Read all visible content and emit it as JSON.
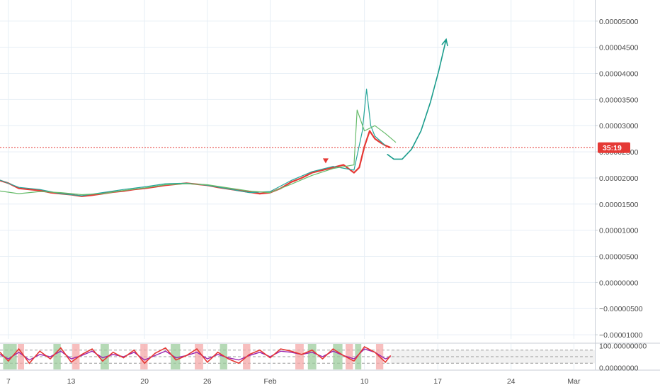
{
  "chart_data": {
    "type": "line",
    "title": "",
    "xlabel": "",
    "ylabel": "",
    "x_tick_labels": [
      "7",
      "13",
      "20",
      "26",
      "Feb",
      "10",
      "17",
      "24",
      "Mar"
    ],
    "x_tick_days": [
      7,
      13,
      20,
      26,
      32,
      41,
      48,
      55,
      61
    ],
    "x_range_days": [
      6.2,
      63.0
    ],
    "price_axis": {
      "tick_labels": [
        "0.00005000",
        "0.00004500",
        "0.00004000",
        "0.00003500",
        "0.00003000",
        "0.00002500",
        "0.00002000",
        "0.00001500",
        "0.00001000",
        "0.00000500",
        "0.00000000",
        "−0.00000500",
        "−0.00001000"
      ],
      "tick_values": [
        5e-05,
        4.5e-05,
        4e-05,
        3.5e-05,
        3e-05,
        2.5e-05,
        2e-05,
        1.5e-05,
        1e-05,
        5e-06,
        0.0,
        -5e-06,
        -1e-05
      ],
      "ylim": [
        -1.08e-05,
        5.35e-05
      ]
    },
    "current_price": 2.58e-05,
    "countdown_label": "35:19",
    "grid": true,
    "series": [
      {
        "color": "#e53935",
        "x": [
          6.2,
          7,
          8,
          9,
          10,
          11,
          12,
          13,
          14,
          15,
          16,
          17,
          18,
          19,
          20,
          21,
          22,
          23,
          24,
          25,
          26,
          27,
          28,
          29,
          30,
          31,
          32,
          33,
          34,
          35,
          36,
          37,
          38,
          39,
          40,
          40.5,
          41,
          41.5,
          42,
          42.5,
          43,
          43.5
        ],
        "y": [
          1.95e-05,
          1.9e-05,
          1.8e-05,
          1.78e-05,
          1.76e-05,
          1.72e-05,
          1.7e-05,
          1.68e-05,
          1.65e-05,
          1.67e-05,
          1.7e-05,
          1.73e-05,
          1.75e-05,
          1.78e-05,
          1.8e-05,
          1.83e-05,
          1.86e-05,
          1.88e-05,
          1.9e-05,
          1.88e-05,
          1.86e-05,
          1.82e-05,
          1.79e-05,
          1.76e-05,
          1.73e-05,
          1.7e-05,
          1.72e-05,
          1.8e-05,
          1.92e-05,
          2e-05,
          2.1e-05,
          2.15e-05,
          2.2e-05,
          2.25e-05,
          2.1e-05,
          2.2e-05,
          2.6e-05,
          2.9e-05,
          2.75e-05,
          2.68e-05,
          2.62e-05,
          2.58e-05
        ]
      },
      {
        "color": "#26a69a",
        "x": [
          6.2,
          8,
          10,
          12,
          14,
          16,
          18,
          20,
          22,
          24,
          26,
          28,
          30,
          32,
          34,
          36,
          38,
          40,
          40.8,
          41.2,
          41.6,
          42,
          43
        ],
        "y": [
          1.96e-05,
          1.82e-05,
          1.78e-05,
          1.7e-05,
          1.66e-05,
          1.72e-05,
          1.78e-05,
          1.83e-05,
          1.89e-05,
          1.9e-05,
          1.86e-05,
          1.79e-05,
          1.72e-05,
          1.74e-05,
          1.95e-05,
          2.12e-05,
          2.22e-05,
          2.15e-05,
          2.9e-05,
          3.7e-05,
          3e-05,
          2.8e-05,
          2.62e-05
        ]
      },
      {
        "color": "#66bb6a",
        "x": [
          6.2,
          8,
          10,
          12,
          14,
          16,
          18,
          20,
          22,
          24,
          26,
          28,
          30,
          32,
          34,
          36,
          38,
          40,
          40.3,
          41,
          42,
          43,
          44
        ],
        "y": [
          1.75e-05,
          1.7e-05,
          1.74e-05,
          1.72e-05,
          1.68e-05,
          1.7e-05,
          1.76e-05,
          1.81e-05,
          1.87e-05,
          1.89e-05,
          1.87e-05,
          1.81e-05,
          1.75e-05,
          1.72e-05,
          1.88e-05,
          2.05e-05,
          2.18e-05,
          2.25e-05,
          3.3e-05,
          2.9e-05,
          3e-05,
          2.85e-05,
          2.68e-05
        ]
      }
    ],
    "annotations": [
      {
        "type": "arrow",
        "color": "#1a9c8c",
        "x": [
          43.2,
          43.8,
          44.6,
          45.5,
          46.4,
          47.3,
          48.1,
          48.8
        ],
        "y": [
          2.45e-05,
          2.36e-05,
          2.36e-05,
          2.55e-05,
          2.9e-05,
          3.45e-05,
          4.05e-05,
          4.65e-05
        ]
      },
      {
        "type": "marker",
        "shape": "triangle-down",
        "color": "#e53935",
        "x": 37.3,
        "y": 2.32e-05
      }
    ],
    "oscillator": {
      "tick_labels": [
        "100.00000000",
        "0.00000000"
      ],
      "tick_values": [
        100,
        0
      ],
      "ylim": [
        -8,
        108
      ],
      "band_upper": 80,
      "band_lower": 20,
      "series_colors": [
        "#e53935",
        "#9c27b0"
      ],
      "x": [
        6.2,
        7,
        8,
        9,
        10,
        11,
        12,
        13,
        14,
        15,
        16,
        17,
        18,
        19,
        20,
        21,
        22,
        23,
        24,
        25,
        26,
        27,
        28,
        29,
        30,
        31,
        32,
        33,
        34,
        35,
        36,
        37,
        38,
        39,
        40,
        41,
        42,
        43,
        43.5
      ],
      "k": [
        70,
        30,
        85,
        20,
        75,
        40,
        90,
        25,
        60,
        85,
        30,
        70,
        45,
        80,
        20,
        65,
        90,
        35,
        55,
        85,
        25,
        70,
        40,
        20,
        60,
        80,
        45,
        85,
        75,
        60,
        80,
        40,
        85,
        55,
        30,
        95,
        70,
        25,
        55
      ],
      "d": [
        60,
        40,
        70,
        35,
        60,
        50,
        75,
        40,
        55,
        75,
        45,
        60,
        50,
        70,
        35,
        55,
        75,
        45,
        55,
        70,
        40,
        60,
        45,
        35,
        55,
        70,
        50,
        75,
        70,
        60,
        70,
        50,
        75,
        55,
        40,
        85,
        70,
        40,
        50
      ],
      "overbought_spans": [
        [
          6.5,
          7.8
        ],
        [
          11.3,
          12.0
        ],
        [
          15.8,
          16.6
        ],
        [
          22.5,
          23.4
        ],
        [
          27.2,
          27.9
        ],
        [
          35.6,
          36.4
        ],
        [
          38.0,
          38.9
        ],
        [
          40.1,
          40.7
        ]
      ],
      "oversold_spans": [
        [
          7.9,
          8.5
        ],
        [
          13.1,
          13.8
        ],
        [
          19.6,
          20.3
        ],
        [
          24.8,
          25.6
        ],
        [
          29.4,
          30.1
        ],
        [
          34.4,
          35.2
        ],
        [
          39.2,
          39.9
        ],
        [
          42.1,
          42.8
        ]
      ]
    }
  }
}
